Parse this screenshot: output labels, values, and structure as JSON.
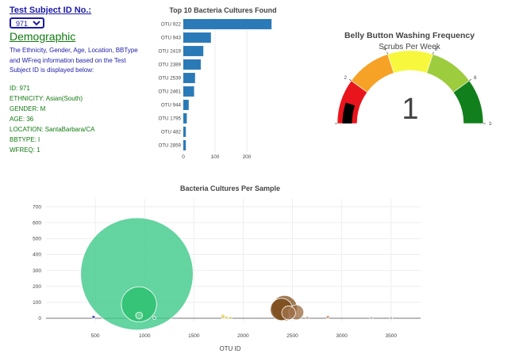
{
  "selector": {
    "label": "Test Subject ID No.:",
    "selected": "971"
  },
  "demographic": {
    "title": "Demographic",
    "description": "The Ethnicity, Gender, Age, Location, BBType and WFreq information based on the Test Subject ID is displayed below:",
    "items": [
      "ID: 971",
      "ETHNICITY: Asian(South)",
      "GENDER: M",
      "AGE: 36",
      "LOCATION: SantaBarbara/CA",
      "BBTYPE: I",
      "WFREQ: 1"
    ]
  },
  "chart_data": [
    {
      "type": "bar",
      "orientation": "horizontal",
      "title": "Top 10 Bacteria Cultures Found",
      "categories": [
        "OTU 922",
        "OTU 943",
        "OTU 2419",
        "OTU 2389",
        "OTU 2539",
        "OTU 2461",
        "OTU 944",
        "OTU 1795",
        "OTU 482",
        "OTU 2859"
      ],
      "values": [
        278,
        87,
        63,
        55,
        37,
        34,
        17,
        11,
        8,
        8
      ],
      "xticks": [
        0,
        100,
        200
      ],
      "xlim": [
        0,
        300
      ],
      "color": "#2a7ab8"
    },
    {
      "type": "gauge",
      "title": "Belly Button Washing Frequency",
      "subtitle": "Scrubs Per Week",
      "value": 1,
      "range": [
        0,
        10
      ],
      "ticks": [
        0,
        2,
        4,
        6,
        8,
        10
      ],
      "bands": [
        {
          "from": 0,
          "to": 2,
          "color": "#e8161c"
        },
        {
          "from": 2,
          "to": 4,
          "color": "#f5a226"
        },
        {
          "from": 4,
          "to": 6,
          "color": "#f7f73e"
        },
        {
          "from": 6,
          "to": 8,
          "color": "#9dcc3e"
        },
        {
          "from": 8,
          "to": 10,
          "color": "#11801c"
        }
      ],
      "bar_color": "#000000"
    },
    {
      "type": "bubble",
      "title": "Bacteria Cultures Per Sample",
      "xlabel": "OTU ID",
      "xticks": [
        500,
        1000,
        1500,
        2000,
        2500,
        3000,
        3500
      ],
      "yticks": [
        0,
        100,
        200,
        300,
        400,
        500,
        600,
        700
      ],
      "xlim": [
        0,
        3800
      ],
      "ylim": [
        -20,
        750
      ],
      "grid": true,
      "points": [
        {
          "x": 922,
          "y": 278,
          "color": "#3dc98a",
          "opacity": 0.8
        },
        {
          "x": 943,
          "y": 87,
          "color": "#2abf6e",
          "opacity": 0.8
        },
        {
          "x": 944,
          "y": 17,
          "color": "#79d9a0",
          "opacity": 0.8
        },
        {
          "x": 482,
          "y": 8,
          "color": "#2e2aa0",
          "opacity": 0.8
        },
        {
          "x": 1795,
          "y": 11,
          "color": "#e0cc50",
          "opacity": 0.7
        },
        {
          "x": 1830,
          "y": 5,
          "color": "#e8d86a",
          "opacity": 0.7
        },
        {
          "x": 1870,
          "y": 3,
          "color": "#e8d86a",
          "opacity": 0.7
        },
        {
          "x": 2389,
          "y": 55,
          "color": "#7a4a1a",
          "opacity": 0.85
        },
        {
          "x": 2419,
          "y": 63,
          "color": "#8a5a2a",
          "opacity": 0.8
        },
        {
          "x": 2461,
          "y": 34,
          "color": "#a07048",
          "opacity": 0.8
        },
        {
          "x": 2539,
          "y": 37,
          "color": "#9a6a40",
          "opacity": 0.75
        },
        {
          "x": 2859,
          "y": 8,
          "color": "#c09070",
          "opacity": 0.8
        },
        {
          "x": 1100,
          "y": 2,
          "color": "#55aa88",
          "opacity": 0.7
        },
        {
          "x": 2650,
          "y": 3,
          "color": "#c0a080",
          "opacity": 0.7
        },
        {
          "x": 3300,
          "y": 2,
          "color": "#bbbbbb",
          "opacity": 0.7
        },
        {
          "x": 3500,
          "y": 1,
          "color": "#bbbbbb",
          "opacity": 0.7
        }
      ]
    }
  ]
}
